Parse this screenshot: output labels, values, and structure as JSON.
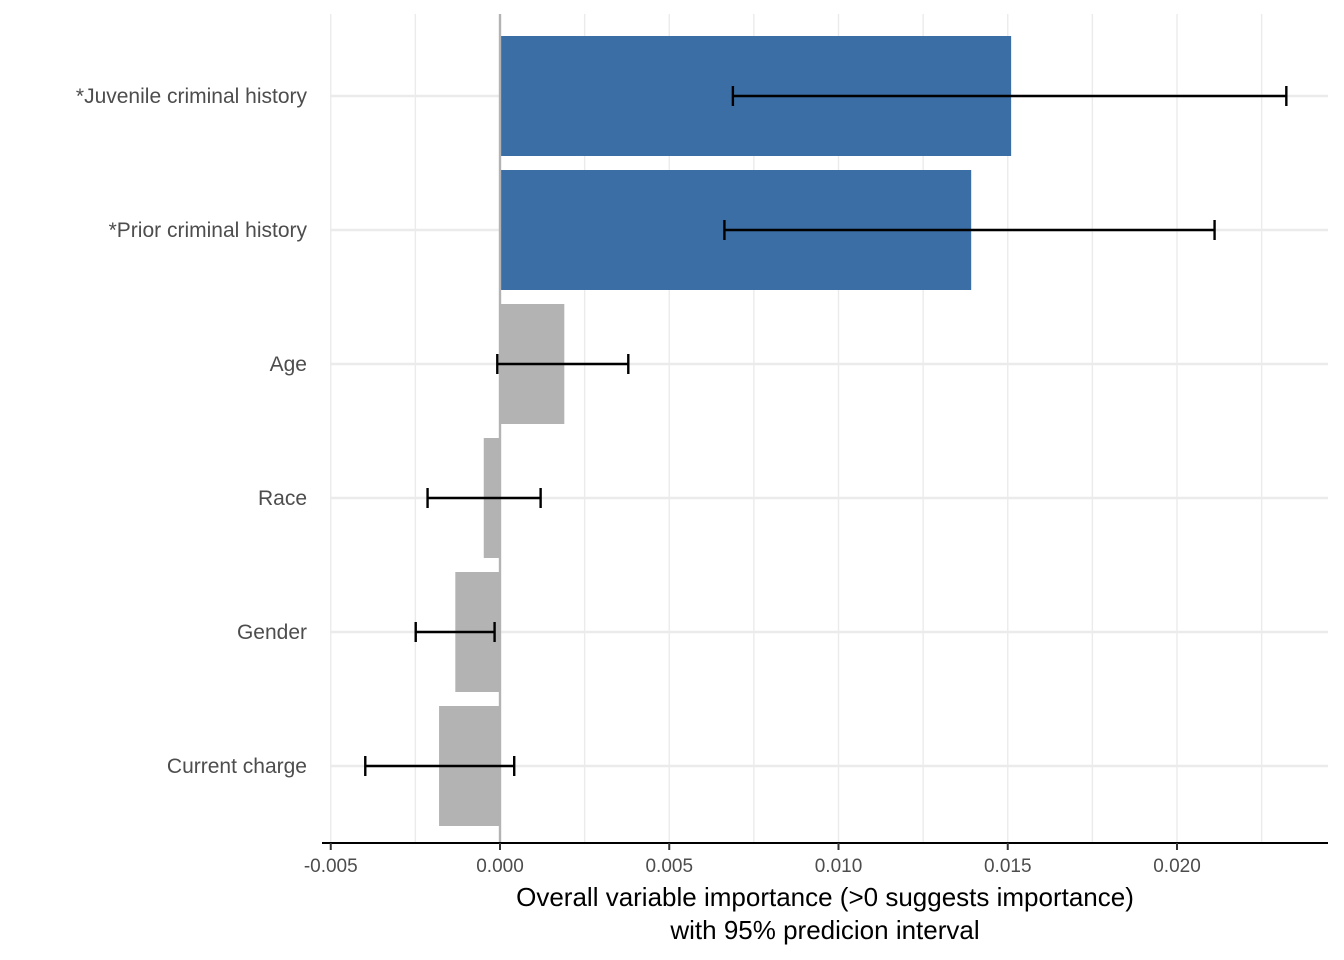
{
  "chart_data": {
    "type": "bar",
    "orientation": "horizontal",
    "xlabel_lines": [
      "Overall variable importance (>0 suggests importance)",
      "with 95% predicion interval"
    ],
    "xlim": [
      -0.0055,
      0.0245
    ],
    "xticks": [
      -0.005,
      0.0,
      0.005,
      0.01,
      0.015,
      0.02
    ],
    "xtick_labels": [
      "-0.005",
      "0.000",
      "0.005",
      "0.010",
      "0.015",
      "0.020"
    ],
    "grid": true,
    "categories": [
      "*Juvenile criminal history",
      "*Prior criminal history",
      "Age",
      "Race",
      "Gender",
      "Current charge"
    ],
    "values": [
      0.0151,
      0.01392,
      0.0019,
      -0.00048,
      -0.00132,
      -0.0018
    ],
    "ci_lower": [
      0.00688,
      0.00663,
      -8e-05,
      -0.00214,
      -0.00249,
      -0.00398
    ],
    "ci_upper": [
      0.02323,
      0.02111,
      0.00379,
      0.0012,
      -0.00016,
      0.00042
    ],
    "significant": [
      true,
      true,
      false,
      false,
      false,
      false
    ],
    "colors": {
      "significant": "#3a6ea5",
      "not_significant": "#b3b3b3",
      "errorbar": "#000000",
      "zero_line": "#b3b3b3",
      "grid": "#ebebeb"
    }
  }
}
